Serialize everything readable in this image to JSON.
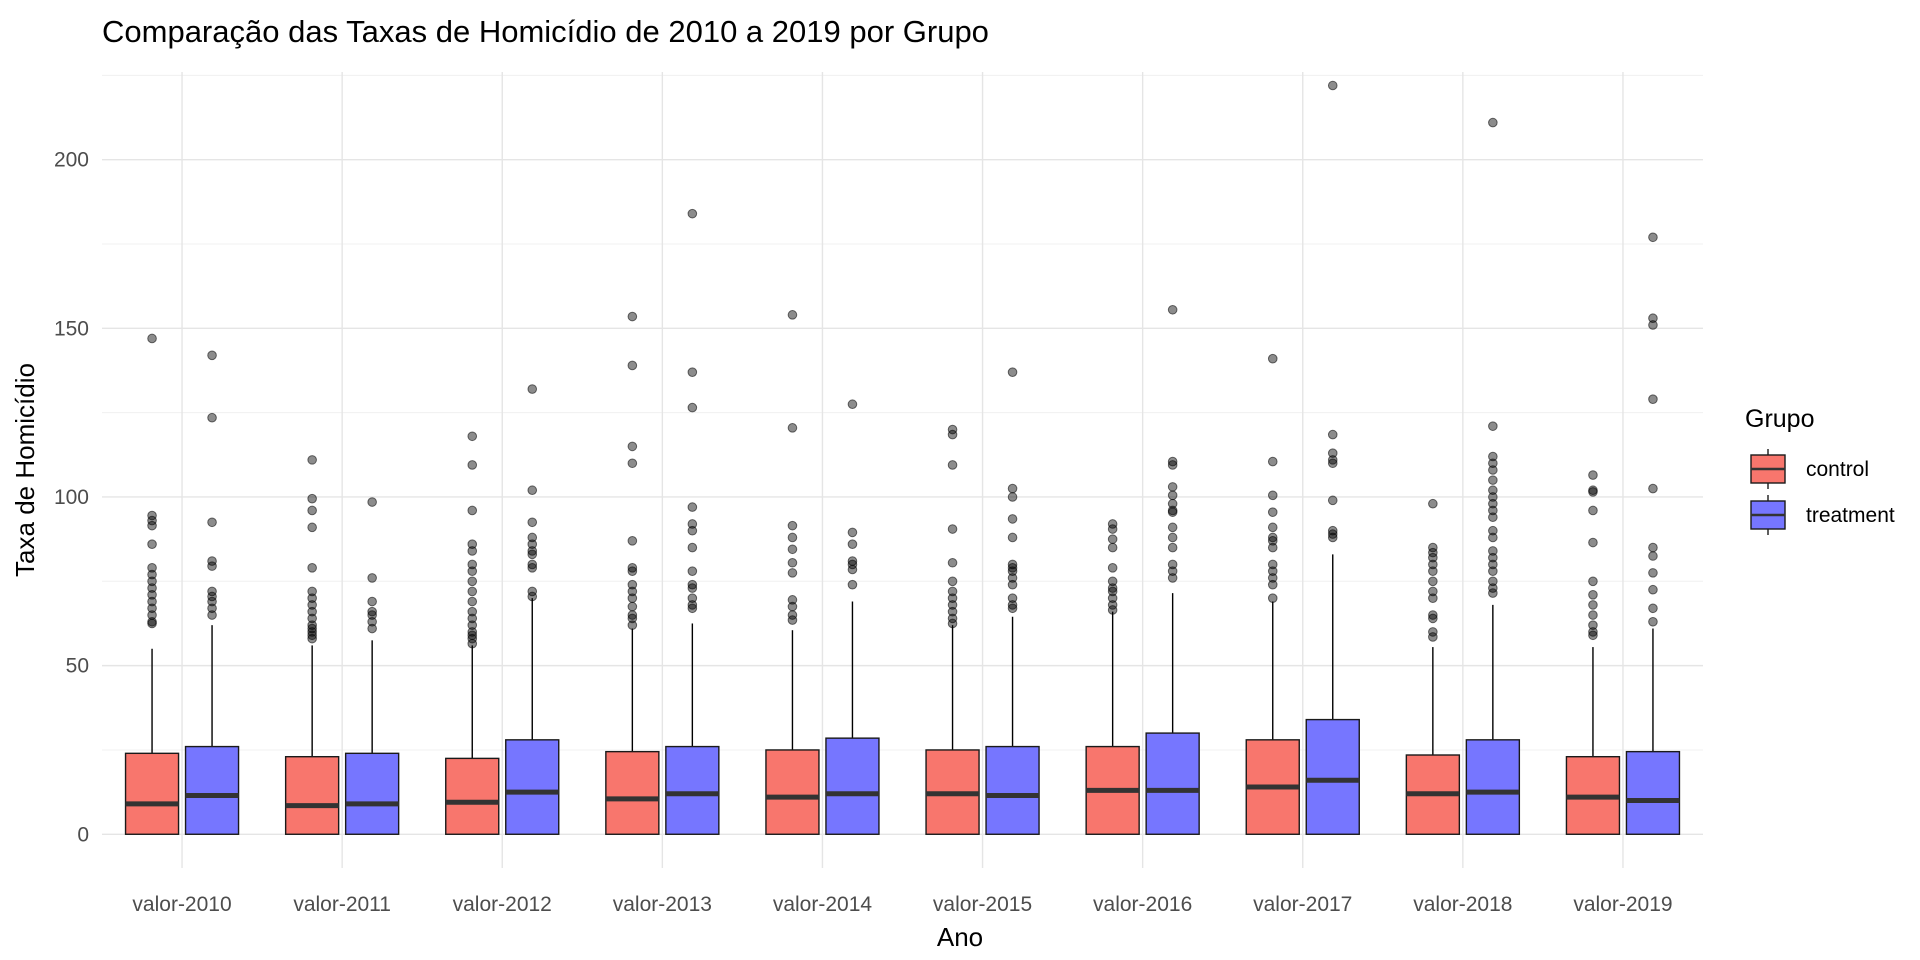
{
  "chart_data": {
    "type": "boxplot",
    "title": "Comparação das Taxas de Homicídio de 2010 a 2019 por Grupo",
    "xlabel": "Ano",
    "ylabel": "Taxa de Homicídio",
    "ylim": [
      -10,
      226
    ],
    "yticks": [
      0,
      50,
      100,
      150,
      200
    ],
    "grid": true,
    "legend": {
      "title": "Grupo",
      "position": "right"
    },
    "categories": [
      "valor-2010",
      "valor-2011",
      "valor-2012",
      "valor-2013",
      "valor-2014",
      "valor-2015",
      "valor-2016",
      "valor-2017",
      "valor-2018",
      "valor-2019"
    ],
    "series": [
      {
        "name": "control",
        "color": "#F8766D",
        "boxes": [
          {
            "min": 0,
            "q1": 0,
            "median": 9,
            "q3": 24,
            "max": 55,
            "outliers": [
              62.5,
              63,
              65,
              67,
              69,
              71,
              73,
              75,
              77,
              79,
              86,
              91.5,
              93,
              94.5,
              147
            ]
          },
          {
            "min": 0,
            "q1": 0,
            "median": 8.5,
            "q3": 23,
            "max": 56,
            "outliers": [
              58,
              59,
              60,
              61,
              62,
              64,
              66,
              68,
              70,
              72,
              79,
              91,
              96,
              99.5,
              111
            ]
          },
          {
            "min": 0,
            "q1": 0,
            "median": 9.5,
            "q3": 22.5,
            "max": 56,
            "outliers": [
              56.5,
              58,
              59,
              60,
              62,
              64,
              66,
              69,
              72,
              75,
              78,
              80,
              84,
              86,
              96,
              109.5,
              118
            ]
          },
          {
            "min": 0,
            "q1": 0,
            "median": 10.5,
            "q3": 24.5,
            "max": 61,
            "outliers": [
              62,
              64,
              65,
              67.5,
              70,
              72,
              74,
              78,
              79,
              87,
              110,
              115,
              139,
              153.5
            ]
          },
          {
            "min": 0,
            "q1": 0,
            "median": 11,
            "q3": 25,
            "max": 60.5,
            "outliers": [
              63.5,
              65,
              67.5,
              69.5,
              77.5,
              80.5,
              84.5,
              88,
              91.5,
              120.5,
              154
            ]
          },
          {
            "min": 0,
            "q1": 0,
            "median": 12,
            "q3": 25,
            "max": 62,
            "outliers": [
              62.5,
              64,
              66,
              68,
              70,
              72,
              75,
              80.5,
              90.5,
              109.5,
              118.5,
              120
            ]
          },
          {
            "min": 0,
            "q1": 0,
            "median": 13,
            "q3": 26,
            "max": 66,
            "outliers": [
              66.5,
              68,
              70,
              72,
              73,
              75,
              79,
              85,
              87.5,
              90.5,
              92
            ]
          },
          {
            "min": 0,
            "q1": 0,
            "median": 14,
            "q3": 28,
            "max": 69,
            "outliers": [
              70,
              74,
              76,
              78,
              80,
              85,
              87,
              88,
              91,
              95.5,
              100.5,
              110.5,
              141
            ]
          },
          {
            "min": 0,
            "q1": 0,
            "median": 12,
            "q3": 23.5,
            "max": 55.5,
            "outliers": [
              58.5,
              60,
              64,
              65,
              70,
              72,
              75,
              78,
              80,
              82,
              83.5,
              85,
              98
            ]
          },
          {
            "min": 0,
            "q1": 0,
            "median": 11,
            "q3": 23,
            "max": 55.5,
            "outliers": [
              59,
              60,
              62,
              65,
              68,
              71,
              75,
              86.5,
              96,
              101.5,
              102,
              106.5
            ]
          }
        ]
      },
      {
        "name": "treatment",
        "color": "#7676FF",
        "boxes": [
          {
            "min": 0,
            "q1": 0,
            "median": 11.5,
            "q3": 26,
            "max": 62,
            "outliers": [
              65,
              67,
              69,
              70.5,
              72,
              79.5,
              81,
              92.5,
              123.5,
              142
            ]
          },
          {
            "min": 0,
            "q1": 0,
            "median": 9,
            "q3": 24,
            "max": 57.5,
            "outliers": [
              61,
              63,
              65,
              66,
              69,
              76,
              98.5
            ]
          },
          {
            "min": 0,
            "q1": 0,
            "median": 12.5,
            "q3": 28,
            "max": 70,
            "outliers": [
              70.5,
              72,
              79,
              80,
              83,
              84,
              86,
              88,
              92.5,
              102,
              132
            ]
          },
          {
            "min": 0,
            "q1": 0,
            "median": 12,
            "q3": 26,
            "max": 62.5,
            "outliers": [
              67,
              68,
              70,
              73,
              74,
              78,
              85,
              90,
              92,
              97,
              126.5,
              137,
              184
            ]
          },
          {
            "min": 0,
            "q1": 0,
            "median": 12,
            "q3": 28.5,
            "max": 69,
            "outliers": [
              74,
              78.5,
              80,
              81,
              86,
              89.5,
              127.5
            ]
          },
          {
            "min": 0,
            "q1": 0,
            "median": 11.5,
            "q3": 26,
            "max": 64.5,
            "outliers": [
              67,
              68,
              70,
              74,
              76,
              78,
              79,
              80,
              88,
              93.5,
              100,
              102.5,
              137
            ]
          },
          {
            "min": 0,
            "q1": 0,
            "median": 13,
            "q3": 30,
            "max": 71.5,
            "outliers": [
              76,
              78,
              80,
              85,
              88,
              91,
              95.5,
              96,
              98,
              100.5,
              103,
              109.5,
              110.5,
              155.5
            ]
          },
          {
            "min": 0,
            "q1": 0,
            "median": 16,
            "q3": 34,
            "max": 83,
            "outliers": [
              88,
              89,
              90,
              99,
              110,
              111,
              113,
              118.5,
              222
            ]
          },
          {
            "min": 0,
            "q1": 0,
            "median": 12.5,
            "q3": 28,
            "max": 68,
            "outliers": [
              71.5,
              73,
              75,
              78,
              80,
              82,
              84,
              88,
              90,
              94,
              96,
              98,
              100,
              102,
              105,
              108,
              110,
              112,
              121,
              211
            ]
          },
          {
            "min": 0,
            "q1": 0,
            "median": 10,
            "q3": 24.5,
            "max": 61,
            "outliers": [
              63,
              67,
              72.5,
              77.5,
              82.5,
              85,
              102.5,
              129,
              151,
              153,
              177
            ]
          }
        ]
      }
    ]
  }
}
